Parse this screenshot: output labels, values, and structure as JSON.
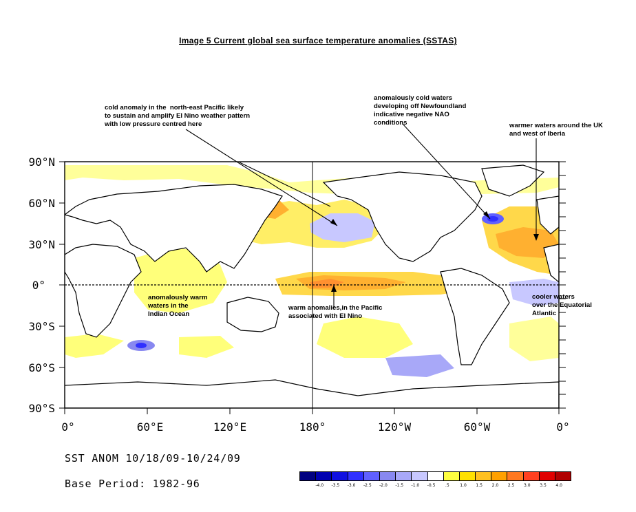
{
  "title": "Image 5 Current global sea surface temperature anomalies (SSTAS)",
  "annotations": {
    "ne_pacific_1": "cold anomaly in the",
    "ne_pacific_2": "north-east",
    "ne_pacific_3": "Pacific likely",
    "ne_pacific_4": "to sustain and amplify El Nino weather pattern\nwith low pressure centred here",
    "newfoundland": "anomalously cold waters\ndeveloping off Newfoundland\nindicative negative NAO\nconditions",
    "uk_iberia": "warmer waters around the UK\nand west of Iberia",
    "indian_ocean": "anomalously warm\nwaters in the\nIndian Ocean",
    "pacific_warm": "warm anomalies,in the Pacific\nassociated with El Nino",
    "atlantic_cool": "cooler waters\nover the Equatorial\nAtlantic"
  },
  "lat_labels": [
    "90°N",
    "60°N",
    "30°N",
    "0°",
    "30°S",
    "60°S",
    "90°S"
  ],
  "lon_labels": [
    "0°",
    "60°E",
    "120°E",
    "180°",
    "120°W",
    "60°W",
    "0°"
  ],
  "footer": {
    "anom": "SST ANOM 10/18/09-10/24/09",
    "base": "Base Period: 1982-96"
  },
  "legend": {
    "colors": [
      "#000080",
      "#0000b0",
      "#1010e0",
      "#3030ff",
      "#6060ff",
      "#8888f0",
      "#a8a8f8",
      "#c8c8ff",
      "#ffffff",
      "#ffff40",
      "#ffe000",
      "#ffc020",
      "#ffa000",
      "#ff7820",
      "#ff4020",
      "#e00000",
      "#b00000"
    ],
    "labels": [
      "-4.0",
      "-3.5",
      "-3.0",
      "-2.5",
      "-2.0",
      "-1.5",
      "-1.0",
      "-0.5",
      ".5",
      "1.0",
      "1.5",
      "2.0",
      "2.5",
      "3.0",
      "3.5",
      "4.0"
    ]
  },
  "chart_data": {
    "type": "heatmap",
    "title": "Image 5 Current global sea surface temperature anomalies (SSTAS)",
    "field": "SST ANOM 10/18/09-10/24/09",
    "base_period": "1982-96",
    "x_range_deg_east": [
      0,
      360
    ],
    "y_range_deg_north": [
      -90,
      90
    ],
    "colorbar_thresholds": [
      -4.0,
      -3.5,
      -3.0,
      -2.5,
      -2.0,
      -1.5,
      -1.0,
      -0.5,
      0.5,
      1.0,
      1.5,
      2.0,
      2.5,
      3.0,
      3.5,
      4.0
    ],
    "anomaly_regions": [
      {
        "name": "North-east Pacific cold anomaly",
        "lon": [
          200,
          235
        ],
        "lat": [
          28,
          42
        ],
        "value": -1.0
      },
      {
        "name": "Newfoundland cold anomaly",
        "lon": [
          300,
          310
        ],
        "lat": [
          40,
          48
        ],
        "value": -2.5
      },
      {
        "name": "Equatorial Pacific warm anomaly (El Nino)",
        "lon": [
          170,
          270
        ],
        "lat": [
          -5,
          5
        ],
        "value": 1.5
      },
      {
        "name": "Indian Ocean warm anomaly",
        "lon": [
          40,
          100
        ],
        "lat": [
          -20,
          20
        ],
        "value": 0.7
      },
      {
        "name": "Warm waters around UK and west of Iberia",
        "lon": [
          325,
          360
        ],
        "lat": [
          30,
          60
        ],
        "value": 1.0
      },
      {
        "name": "Equatorial Atlantic cool anomaly",
        "lon": [
          330,
          360
        ],
        "lat": [
          -10,
          5
        ],
        "value": -0.7
      },
      {
        "name": "Southern Indian Ocean cold anomaly",
        "lon": [
          40,
          75
        ],
        "lat": [
          -50,
          -40
        ],
        "value": -2.0
      },
      {
        "name": "Kamchatka warm anomaly",
        "lon": [
          150,
          165
        ],
        "lat": [
          45,
          60
        ],
        "value": 2.5
      }
    ]
  }
}
